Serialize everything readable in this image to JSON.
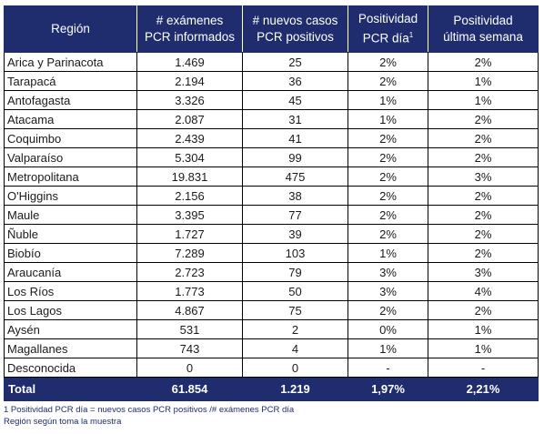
{
  "table": {
    "headers": {
      "region": "Región",
      "examenes_l1": "# exámenes",
      "examenes_l2": "PCR informados",
      "casos_l1": "# nuevos casos",
      "casos_l2": "PCR positivos",
      "pos_dia_l1": "Positividad",
      "pos_dia_l2": "PCR día",
      "pos_dia_sup": "1",
      "pos_sem_l1": "Positividad",
      "pos_sem_l2": "última semana"
    },
    "rows": [
      {
        "region": "Arica y Parinacota",
        "examenes": "1.469",
        "casos": "25",
        "pos_dia": "2%",
        "pos_sem": "2%"
      },
      {
        "region": "Tarapacá",
        "examenes": "2.194",
        "casos": "36",
        "pos_dia": "2%",
        "pos_sem": "1%"
      },
      {
        "region": "Antofagasta",
        "examenes": "3.326",
        "casos": "45",
        "pos_dia": "1%",
        "pos_sem": "1%"
      },
      {
        "region": "Atacama",
        "examenes": "2.087",
        "casos": "31",
        "pos_dia": "1%",
        "pos_sem": "2%"
      },
      {
        "region": "Coquimbo",
        "examenes": "2.439",
        "casos": "41",
        "pos_dia": "2%",
        "pos_sem": "2%"
      },
      {
        "region": "Valparaíso",
        "examenes": "5.304",
        "casos": "99",
        "pos_dia": "2%",
        "pos_sem": "2%"
      },
      {
        "region": "Metropolitana",
        "examenes": "19.831",
        "casos": "475",
        "pos_dia": "2%",
        "pos_sem": "3%"
      },
      {
        "region": "O'Higgins",
        "examenes": "2.156",
        "casos": "38",
        "pos_dia": "2%",
        "pos_sem": "2%"
      },
      {
        "region": "Maule",
        "examenes": "3.395",
        "casos": "77",
        "pos_dia": "2%",
        "pos_sem": "2%"
      },
      {
        "region": "Ñuble",
        "examenes": "1.727",
        "casos": "39",
        "pos_dia": "2%",
        "pos_sem": "2%"
      },
      {
        "region": "Biobío",
        "examenes": "7.289",
        "casos": "103",
        "pos_dia": "1%",
        "pos_sem": "2%"
      },
      {
        "region": "Araucanía",
        "examenes": "2.723",
        "casos": "79",
        "pos_dia": "3%",
        "pos_sem": "3%"
      },
      {
        "region": "Los Ríos",
        "examenes": "1.773",
        "casos": "50",
        "pos_dia": "3%",
        "pos_sem": "4%"
      },
      {
        "region": "Los Lagos",
        "examenes": "4.867",
        "casos": "75",
        "pos_dia": "2%",
        "pos_sem": "2%"
      },
      {
        "region": "Aysén",
        "examenes": "531",
        "casos": "2",
        "pos_dia": "0%",
        "pos_sem": "1%"
      },
      {
        "region": "Magallanes",
        "examenes": "743",
        "casos": "4",
        "pos_dia": "1%",
        "pos_sem": "1%"
      },
      {
        "region": "Desconocida",
        "examenes": "0",
        "casos": "0",
        "pos_dia": "-",
        "pos_sem": "-"
      }
    ],
    "total": {
      "region": "Total",
      "examenes": "61.854",
      "casos": "1.219",
      "pos_dia": "1,97%",
      "pos_sem": "2,21%"
    }
  },
  "footnotes": {
    "line1": "1 Positividad PCR día = nuevos casos PCR positivos /# exámenes PCR día",
    "line2": "Región según toma la muestra"
  },
  "colors": {
    "header_bg": "#1f2d6e",
    "header_text": "#ffffff",
    "note_text": "#1f2d6e"
  }
}
